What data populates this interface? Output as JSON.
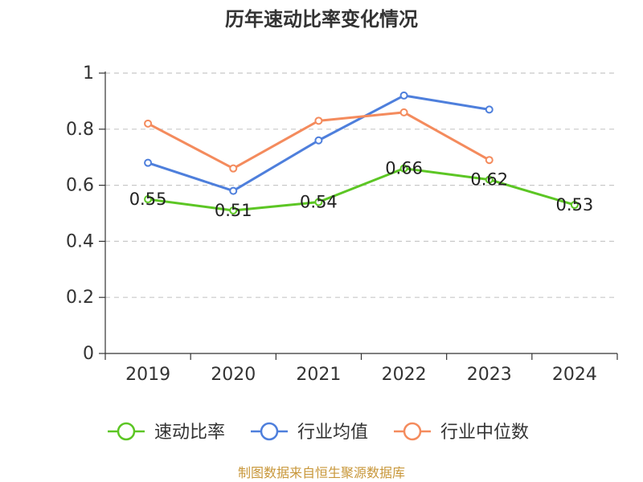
{
  "chart_data": {
    "type": "line",
    "title": "历年速动比率变化情况",
    "categories": [
      "2019",
      "2020",
      "2021",
      "2022",
      "2023",
      "2024"
    ],
    "y_ticks": [
      "0",
      "0.2",
      "0.4",
      "0.6",
      "0.8",
      "1"
    ],
    "ylim": [
      0,
      1
    ],
    "grid": true,
    "legend_position": "bottom",
    "series": [
      {
        "name": "速动比率",
        "color": "#5cc624",
        "values": [
          0.55,
          0.51,
          0.54,
          0.66,
          0.62,
          0.53
        ],
        "labels": [
          "0.55",
          "0.51",
          "0.54",
          "0.66",
          "0.62",
          "0.53"
        ]
      },
      {
        "name": "行业均值",
        "color": "#4e7fdc",
        "values": [
          0.68,
          0.58,
          0.76,
          0.92,
          0.87,
          null
        ]
      },
      {
        "name": "行业中位数",
        "color": "#f48b5d",
        "values": [
          0.82,
          0.66,
          0.83,
          0.86,
          0.69,
          null
        ]
      }
    ],
    "source": "制图数据来自恒生聚源数据库"
  }
}
